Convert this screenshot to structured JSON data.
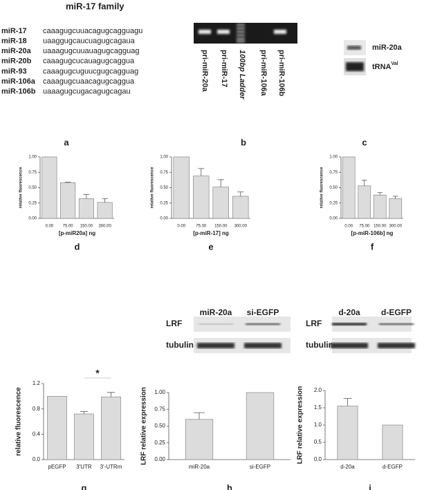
{
  "family": {
    "title": "miR-17 family",
    "rows": [
      {
        "name": "miR-17",
        "sequence": "caaagugcuuacagugcagguagu"
      },
      {
        "name": "miR-18",
        "sequence": "uaaggugcaucuagugcagaua"
      },
      {
        "name": "miR-20a",
        "sequence": "uaaagugcuuauagugcagguag"
      },
      {
        "name": "miR-20b",
        "sequence": "caaagugcucauagugcaggua"
      },
      {
        "name": "miR-93",
        "sequence": "caaagugcuguucgugcagguag"
      },
      {
        "name": "miR-106a",
        "sequence": "caaagugcuaacagugcaggua"
      },
      {
        "name": "miR-106b",
        "sequence": "uaaagugcugacagugcagau"
      }
    ],
    "panel": "a"
  },
  "gel": {
    "lanes": [
      "pri-miR-20a",
      "pri-miR-17",
      "100bp Ladder",
      "pri-miR-106a",
      "pri-miR-106b"
    ],
    "panel": "b"
  },
  "northern": {
    "label": "miR-20a",
    "trna": "tRNA",
    "trna_sup": "Val",
    "panel": "c"
  },
  "chart_data": [
    {
      "type": "bar",
      "panel": "d",
      "categories": [
        "0.00",
        "75.00",
        "150.00",
        "300.00"
      ],
      "values": [
        1.0,
        0.58,
        0.32,
        0.26
      ],
      "errors": [
        0,
        0.01,
        0.07,
        0.06
      ],
      "xlabel": "[p-miR20a] ng",
      "ylabel": "relative fluorescence",
      "ylim": [
        0,
        1
      ],
      "yticks": [
        {
          "value": 0,
          "label": "0.00"
        },
        {
          "value": 0.25,
          "label": "0.25"
        },
        {
          "value": 0.5,
          "label": "0.50"
        },
        {
          "value": 0.75,
          "label": "0.75"
        },
        {
          "value": 1,
          "label": "1.00"
        }
      ],
      "color": "#dcdcdc"
    },
    {
      "type": "bar",
      "panel": "e",
      "categories": [
        "0.00",
        "75.00",
        "150.00",
        "300.00"
      ],
      "values": [
        1.0,
        0.69,
        0.51,
        0.36
      ],
      "errors": [
        0,
        0.12,
        0.12,
        0.07
      ],
      "xlabel": "[p-miR-17] ng",
      "ylabel": "relative fluorescence",
      "ylim": [
        0,
        1
      ],
      "yticks": [
        {
          "value": 0,
          "label": "0.00"
        },
        {
          "value": 0.25,
          "label": "0.25"
        },
        {
          "value": 0.5,
          "label": "0.50"
        },
        {
          "value": 0.75,
          "label": "0.75"
        },
        {
          "value": 1,
          "label": "1.00"
        }
      ],
      "color": "#dcdcdc"
    },
    {
      "type": "bar",
      "panel": "f",
      "categories": [
        "0.00",
        "75.00",
        "150.00",
        "300.00"
      ],
      "values": [
        1.0,
        0.53,
        0.38,
        0.32
      ],
      "errors": [
        0,
        0.09,
        0.04,
        0.04
      ],
      "xlabel": "[p-miR-106b] ng",
      "ylabel": "relative fluorescence",
      "ylim": [
        0,
        1
      ],
      "yticks": [
        {
          "value": 0,
          "label": "0.00"
        },
        {
          "value": 0.25,
          "label": "0.25"
        },
        {
          "value": 0.5,
          "label": "0.50"
        },
        {
          "value": 0.75,
          "label": "0.75"
        },
        {
          "value": 1,
          "label": "1.00"
        }
      ],
      "color": "#dcdcdc"
    },
    {
      "type": "bar",
      "panel": "g",
      "categories": [
        "pEGFP",
        "3'UTR",
        "3'-UTRm"
      ],
      "values": [
        1.0,
        0.72,
        0.99
      ],
      "errors": [
        0,
        0.04,
        0.07
      ],
      "ylabel": "relative fluorescence",
      "ylim": [
        0,
        1.2
      ],
      "annotation": "*",
      "yticks": [
        {
          "value": 0,
          "label": "0.0"
        },
        {
          "value": 0.4,
          "label": "0.4"
        },
        {
          "value": 0.8,
          "label": "0.8"
        },
        {
          "value": 1.2,
          "label": "1.2"
        }
      ],
      "color": "#dcdcdc"
    },
    {
      "type": "bar",
      "panel": "h",
      "categories": [
        "miR-20a",
        "si-EGFP"
      ],
      "values": [
        0.6,
        1.0
      ],
      "errors": [
        0.1,
        0
      ],
      "ylabel": "LRF relative expression",
      "ylim": [
        0,
        1
      ],
      "yticks": [
        {
          "value": 0,
          "label": "0.00"
        },
        {
          "value": 0.25,
          "label": "0.25"
        },
        {
          "value": 0.5,
          "label": "0.50"
        },
        {
          "value": 0.75,
          "label": "0.75"
        },
        {
          "value": 1,
          "label": "1.00"
        }
      ],
      "color": "#dcdcdc",
      "blot": {
        "lanes": [
          "miR-20a",
          "si-EGFP"
        ],
        "rows": [
          "LRF",
          "tubulin"
        ]
      }
    },
    {
      "type": "bar",
      "panel": "i",
      "categories": [
        "d-20a",
        "d-EGFP"
      ],
      "values": [
        1.55,
        1.0
      ],
      "errors": [
        0.22,
        0
      ],
      "ylabel": "LRF relative expression",
      "ylim": [
        0,
        2
      ],
      "yticks": [
        {
          "value": 0,
          "label": "0.0"
        },
        {
          "value": 0.5,
          "label": "0.5"
        },
        {
          "value": 1,
          "label": "1.0"
        },
        {
          "value": 1.5,
          "label": "1.5"
        },
        {
          "value": 2,
          "label": "2.0"
        }
      ],
      "color": "#dcdcdc",
      "blot": {
        "lanes": [
          "d-20a",
          "d-EGFP"
        ],
        "rows": [
          "LRF",
          "tubulin"
        ]
      }
    }
  ]
}
